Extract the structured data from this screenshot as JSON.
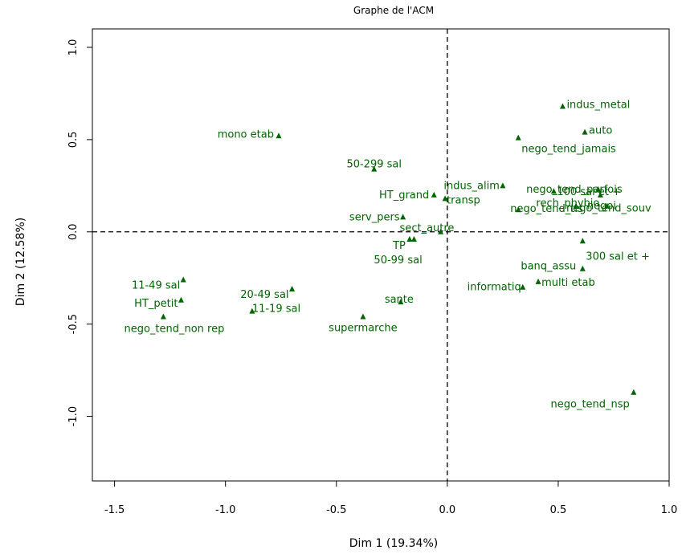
{
  "chart_data": {
    "type": "scatter",
    "title": "Graphe de l'ACM",
    "xlabel": "Dim 1 (19.34%)",
    "ylabel": "Dim 2 (12.58%)",
    "xlim": [
      -1.6,
      1.0
    ],
    "ylim": [
      -1.35,
      1.1
    ],
    "xticks": [
      -1.5,
      -1.0,
      -0.5,
      0.0,
      0.5,
      1.0
    ],
    "xtick_labels": [
      "-1.5",
      "-1.0",
      "-0.5",
      "0.0",
      "0.5",
      "1.0"
    ],
    "yticks": [
      -1.0,
      -0.5,
      0.0,
      0.5,
      1.0
    ],
    "ytick_labels": [
      "-1.0",
      "-0.5",
      "0.0",
      "0.5",
      "1.0"
    ],
    "reference_lines": {
      "x": 0,
      "y": 0,
      "style": "dashed"
    },
    "marker": "filled-triangle",
    "color": "#006400",
    "points": [
      {
        "label": "indus_metal",
        "x": 0.52,
        "y": 0.68
      },
      {
        "label": "auto",
        "x": 0.62,
        "y": 0.54
      },
      {
        "label": "nego_tend_jamais",
        "x": 0.32,
        "y": 0.51
      },
      {
        "label": "mono etab",
        "x": -0.76,
        "y": 0.52
      },
      {
        "label": "50-299 sal",
        "x": -0.33,
        "y": 0.34
      },
      {
        "label": "indus_alim",
        "x": 0.25,
        "y": 0.25
      },
      {
        "label": "nego_tend_parfois",
        "x": 0.68,
        "y": 0.23
      },
      {
        "label": "100 sal et +",
        "x": 0.48,
        "y": 0.22
      },
      {
        "label": "HT_grand",
        "x": -0.06,
        "y": 0.2
      },
      {
        "label": "transp",
        "x": -0.01,
        "y": 0.18
      },
      {
        "label": "nego_tend_souv",
        "x": 0.72,
        "y": 0.14
      },
      {
        "label": "negoi",
        "x": 0.58,
        "y": 0.14
      },
      {
        "label": "nego_tend_tis",
        "x": 0.32,
        "y": 0.12
      },
      {
        "label": "serv_pers",
        "x": -0.2,
        "y": 0.08
      },
      {
        "label": "rech_phybio",
        "x": 0.69,
        "y": 0.2
      },
      {
        "label": "sect_autre",
        "x": -0.03,
        "y": 0.0
      },
      {
        "label": "TP",
        "x": -0.17,
        "y": -0.04
      },
      {
        "label": "50-99 sal",
        "x": -0.15,
        "y": -0.04
      },
      {
        "label": "300 sal et +",
        "x": 0.61,
        "y": -0.05
      },
      {
        "label": "banq_assu",
        "x": 0.61,
        "y": -0.2
      },
      {
        "label": "multi etab",
        "x": 0.41,
        "y": -0.27
      },
      {
        "label": "informatiq",
        "x": 0.34,
        "y": -0.3
      },
      {
        "label": "sante",
        "x": -0.21,
        "y": -0.38
      },
      {
        "label": "supermarche",
        "x": -0.38,
        "y": -0.46
      },
      {
        "label": "11-49 sal",
        "x": -1.19,
        "y": -0.26
      },
      {
        "label": "20-49 sal",
        "x": -0.7,
        "y": -0.31
      },
      {
        "label": "HT_petit",
        "x": -1.2,
        "y": -0.37
      },
      {
        "label": "11-19 sal",
        "x": -0.88,
        "y": -0.43
      },
      {
        "label": "nego_tend_non rep",
        "x": -1.28,
        "y": -0.46
      },
      {
        "label": "nego_tend_nsp",
        "x": 0.84,
        "y": -0.87
      }
    ]
  }
}
